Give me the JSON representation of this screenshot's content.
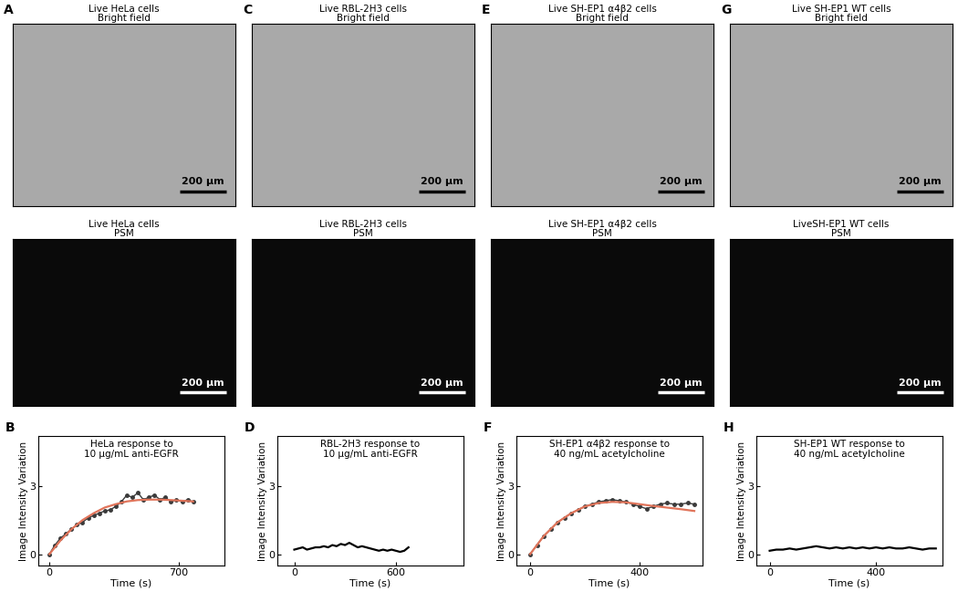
{
  "panels": [
    {
      "label": "A",
      "bright_field": {
        "title": "Live HeLa cells\nBright field",
        "scale_bar": "200 µm"
      },
      "psm": {
        "title": "Live HeLa cells\nPSM",
        "scale_bar": "200 µm"
      }
    },
    {
      "label": "C",
      "bright_field": {
        "title": "Live RBL-2H3 cells\nBright field",
        "scale_bar": "200 µm"
      },
      "psm": {
        "title": "Live RBL-2H3 cells\nPSM",
        "scale_bar": "200 µm"
      }
    },
    {
      "label": "E",
      "bright_field": {
        "title": "Live SH-EP1 α4β2 cells\nBright field",
        "scale_bar": "200 µm"
      },
      "psm": {
        "title": "Live SH-EP1 α4β2 cells\nPSM",
        "scale_bar": "200 µm"
      }
    },
    {
      "label": "G",
      "bright_field": {
        "title": "Live SH-EP1 WT cells\nBright field",
        "scale_bar": "200 µm"
      },
      "psm": {
        "title": "LiveSH-EP1 WT cells\nPSM",
        "scale_bar": "200 µm"
      }
    }
  ],
  "chart_data": [
    {
      "label": "B",
      "type": "line",
      "title": "HeLa response to\n10 µg/mL anti-EGFR",
      "x_label": "Time (s)",
      "y_label": "Image Intensity Variation",
      "xlim": [
        -60,
        950
      ],
      "xticks": [
        0,
        700
      ],
      "ylim": [
        -0.5,
        5.2
      ],
      "yticks": [
        0,
        3
      ],
      "series": [
        {
          "type": "line",
          "color": "#3a3a3a",
          "marker": "o",
          "line_style": "solid",
          "x": [
            0,
            30,
            60,
            90,
            120,
            150,
            180,
            210,
            240,
            270,
            300,
            330,
            360,
            390,
            420,
            450,
            480,
            510,
            540,
            570,
            600,
            630,
            660,
            690,
            720,
            750,
            780
          ],
          "values": [
            0,
            0.4,
            0.7,
            0.9,
            1.1,
            1.3,
            1.4,
            1.6,
            1.7,
            1.8,
            1.9,
            1.95,
            2.1,
            2.3,
            2.6,
            2.5,
            2.7,
            2.4,
            2.5,
            2.6,
            2.4,
            2.5,
            2.3,
            2.4,
            2.3,
            2.4,
            2.3
          ]
        },
        {
          "type": "line",
          "color": "#e0745a",
          "line_style": "solid",
          "x": [
            0,
            60,
            120,
            180,
            240,
            300,
            360,
            420,
            480,
            540,
            600,
            660,
            720,
            780
          ],
          "values": [
            0,
            0.6,
            1.1,
            1.5,
            1.8,
            2.05,
            2.2,
            2.32,
            2.38,
            2.4,
            2.4,
            2.38,
            2.35,
            2.32
          ]
        }
      ]
    },
    {
      "label": "D",
      "type": "line",
      "title": "RBL-2H3 response to\n10 µg/mL anti-EGFR",
      "x_label": "Time (s)",
      "y_label": "Image Intensity Variation",
      "xlim": [
        -100,
        1000
      ],
      "xticks": [
        0,
        600
      ],
      "ylim": [
        -0.5,
        5.2
      ],
      "yticks": [
        0,
        3
      ],
      "series": [
        {
          "type": "line",
          "color": "#000000",
          "line_style": "solid",
          "x": [
            0,
            25,
            50,
            75,
            100,
            125,
            150,
            175,
            200,
            225,
            250,
            275,
            300,
            325,
            350,
            375,
            400,
            425,
            450,
            475,
            500,
            525,
            550,
            575,
            600,
            625,
            650,
            675
          ],
          "values": [
            0.2,
            0.25,
            0.3,
            0.2,
            0.25,
            0.3,
            0.3,
            0.35,
            0.3,
            0.4,
            0.35,
            0.45,
            0.4,
            0.5,
            0.4,
            0.3,
            0.35,
            0.3,
            0.25,
            0.2,
            0.15,
            0.2,
            0.15,
            0.2,
            0.15,
            0.1,
            0.15,
            0.3
          ]
        }
      ]
    },
    {
      "label": "F",
      "type": "line",
      "title": "SH-EP1 α4β2 response to\n40 ng/mL acetylcholine",
      "x_label": "Time (s)",
      "y_label": "Image Intensity Variation",
      "xlim": [
        -50,
        630
      ],
      "xticks": [
        0,
        400
      ],
      "ylim": [
        -0.5,
        5.2
      ],
      "yticks": [
        0,
        3
      ],
      "series": [
        {
          "type": "line",
          "color": "#3a3a3a",
          "marker": "o",
          "line_style": "solid",
          "x": [
            0,
            25,
            50,
            75,
            100,
            125,
            150,
            175,
            200,
            225,
            250,
            275,
            300,
            325,
            350,
            375,
            400,
            425,
            450,
            475,
            500,
            525,
            550,
            575,
            600
          ],
          "values": [
            0,
            0.4,
            0.8,
            1.1,
            1.4,
            1.6,
            1.8,
            1.95,
            2.1,
            2.2,
            2.3,
            2.35,
            2.4,
            2.35,
            2.3,
            2.2,
            2.1,
            2.0,
            2.1,
            2.2,
            2.25,
            2.2,
            2.2,
            2.25,
            2.2
          ]
        },
        {
          "type": "line",
          "color": "#e0745a",
          "line_style": "solid",
          "x": [
            0,
            50,
            100,
            150,
            200,
            250,
            300,
            350,
            400,
            450,
            500,
            550,
            600
          ],
          "values": [
            0,
            0.8,
            1.4,
            1.8,
            2.1,
            2.25,
            2.3,
            2.28,
            2.2,
            2.12,
            2.05,
            1.98,
            1.9
          ]
        }
      ]
    },
    {
      "label": "H",
      "type": "line",
      "title": "SH-EP1 WT response to\n40 ng/mL acetylcholine",
      "x_label": "Time (s)",
      "y_label": "Image Intensity Variation",
      "xlim": [
        -50,
        650
      ],
      "xticks": [
        0,
        400
      ],
      "ylim": [
        -0.5,
        5.2
      ],
      "yticks": [
        0,
        3
      ],
      "series": [
        {
          "type": "line",
          "color": "#000000",
          "line_style": "solid",
          "x": [
            0,
            25,
            50,
            75,
            100,
            125,
            150,
            175,
            200,
            225,
            250,
            275,
            300,
            325,
            350,
            375,
            400,
            425,
            450,
            475,
            500,
            525,
            550,
            575,
            600,
            625
          ],
          "values": [
            0.15,
            0.2,
            0.2,
            0.25,
            0.2,
            0.25,
            0.3,
            0.35,
            0.3,
            0.25,
            0.3,
            0.25,
            0.3,
            0.25,
            0.3,
            0.25,
            0.3,
            0.25,
            0.3,
            0.25,
            0.25,
            0.3,
            0.25,
            0.2,
            0.25,
            0.25
          ]
        }
      ]
    }
  ]
}
